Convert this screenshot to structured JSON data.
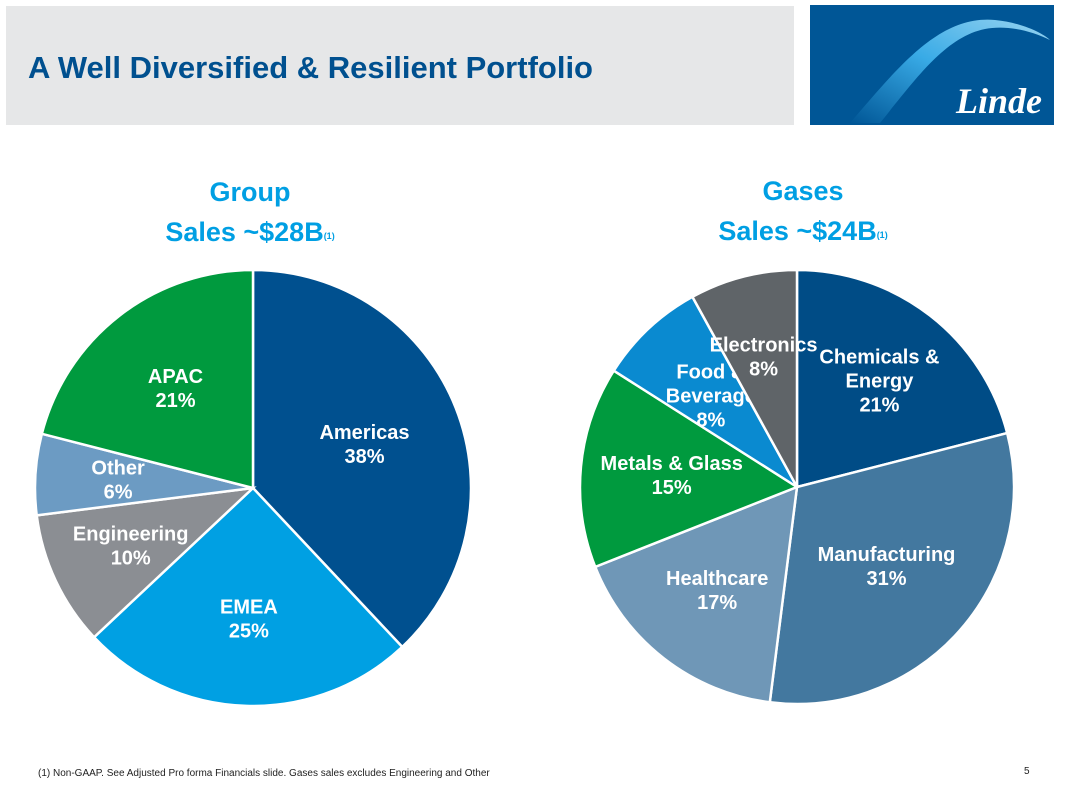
{
  "header": {
    "title": "A Well Diversified & Resilient Portfolio"
  },
  "logo": {
    "text": "Linde",
    "color": "#005696"
  },
  "chart_data": [
    {
      "type": "pie",
      "title": "Group",
      "subtitle": "Sales ~$28B",
      "subtitle_note": "(1)",
      "start": "top",
      "direction": "clockwise",
      "slices": [
        {
          "label": "Americas",
          "value": 38,
          "pct": "38%",
          "color": "#00508f"
        },
        {
          "label": "EMEA",
          "value": 25,
          "pct": "25%",
          "color": "#00a0e3"
        },
        {
          "label": "Engineering",
          "value": 10,
          "pct": "10%",
          "color": "#8b8e93"
        },
        {
          "label": "Other",
          "value": 6,
          "pct": "6%",
          "color": "#6c9bc3"
        },
        {
          "label": "APAC",
          "value": 21,
          "pct": "21%",
          "color": "#009a3e"
        }
      ]
    },
    {
      "type": "pie",
      "title": "Gases",
      "subtitle": "Sales ~$24B",
      "subtitle_note": "(1)",
      "start": "top",
      "direction": "clockwise",
      "slices": [
        {
          "label": "Chemicals & Energy",
          "value": 21,
          "pct": "21%",
          "color": "#004c86"
        },
        {
          "label": "Manufacturing",
          "value": 31,
          "pct": "31%",
          "color": "#43789f"
        },
        {
          "label": "Healthcare",
          "value": 17,
          "pct": "17%",
          "color": "#6f97b7"
        },
        {
          "label": "Metals & Glass",
          "value": 15,
          "pct": "15%",
          "color": "#009a3e"
        },
        {
          "label": "Food & Beverage",
          "value": 8,
          "pct": "8%",
          "color": "#0a8ad0"
        },
        {
          "label": "Electronics",
          "value": 8,
          "pct": "8%",
          "color": "#5f6468"
        }
      ]
    }
  ],
  "footer": {
    "footnote": "(1) Non-GAAP.  See Adjusted Pro forma Financials slide.  Gases sales excludes Engineering and Other",
    "page_number": "5"
  }
}
